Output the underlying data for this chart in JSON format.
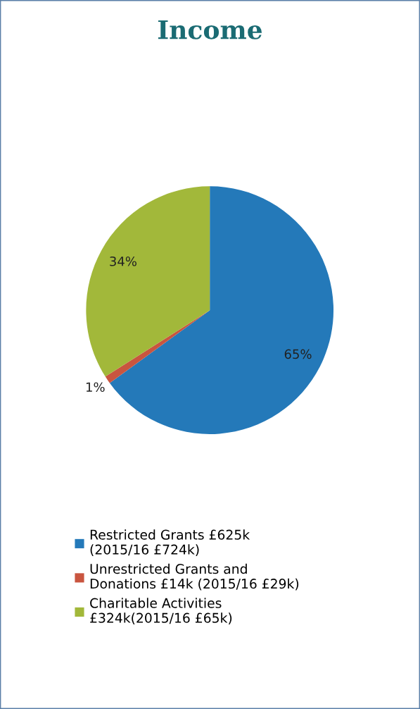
{
  "chart_data": {
    "type": "pie",
    "title": "Income",
    "categories": [
      "Restricted Grants £625k\n(2015/16 £724k)",
      "Unrestricted Grants and\nDonations £14k (2015/16 £29k)",
      "Charitable Activities\n£324k(2015/16 £65k)"
    ],
    "values": [
      65,
      1,
      34
    ],
    "colors": [
      "#2479b9",
      "#c9553f",
      "#a2b83a"
    ],
    "value_labels": [
      "65%",
      "1%",
      "34%"
    ],
    "legend": "bottom"
  }
}
